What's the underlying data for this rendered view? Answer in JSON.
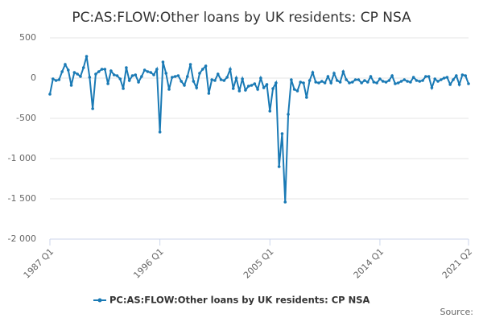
{
  "chart_data": {
    "type": "line",
    "title": "PC:AS:FLOW:Other loans by UK residents: CP NSA",
    "source": "Source:",
    "categories": [
      "1987 Q1",
      null,
      null,
      null,
      null,
      null,
      null,
      null,
      null,
      null,
      null,
      null,
      null,
      null,
      null,
      null,
      null,
      null,
      null,
      null,
      null,
      null,
      null,
      null,
      null,
      null,
      null,
      null,
      null,
      null,
      null,
      null,
      null,
      null,
      null,
      null,
      "1996 Q1",
      null,
      null,
      null,
      null,
      null,
      null,
      null,
      null,
      null,
      null,
      null,
      null,
      null,
      null,
      null,
      null,
      null,
      null,
      null,
      null,
      null,
      null,
      null,
      null,
      null,
      null,
      null,
      null,
      null,
      null,
      null,
      null,
      null,
      null,
      null,
      "2005 Q1",
      null,
      null,
      null,
      null,
      null,
      null,
      null,
      null,
      null,
      null,
      null,
      null,
      null,
      null,
      null,
      null,
      null,
      null,
      null,
      null,
      null,
      null,
      null,
      null,
      null,
      null,
      null,
      null,
      null,
      null,
      null,
      null,
      null,
      null,
      null,
      "2014 Q1",
      null,
      null,
      null,
      null,
      null,
      null,
      null,
      null,
      null,
      null,
      null,
      null,
      null,
      null,
      null,
      null,
      null,
      null,
      null,
      null,
      null,
      null,
      null,
      null,
      null,
      null,
      null,
      null,
      "2021 Q2"
    ],
    "series": [
      {
        "name": "PC:AS:FLOW:Other loans by UK residents: CP NSA",
        "color": "#1a7ab5",
        "values": [
          -200,
          -10,
          -30,
          -20,
          80,
          170,
          100,
          -90,
          70,
          50,
          20,
          130,
          270,
          10,
          -380,
          50,
          80,
          110,
          110,
          -70,
          90,
          40,
          30,
          -10,
          -130,
          130,
          -30,
          30,
          40,
          -50,
          20,
          100,
          80,
          70,
          40,
          110,
          -670,
          200,
          60,
          -140,
          10,
          20,
          30,
          -40,
          -90,
          20,
          170,
          -40,
          -120,
          60,
          110,
          150,
          -190,
          -20,
          -30,
          50,
          -20,
          -30,
          10,
          110,
          -130,
          0,
          -160,
          -10,
          -150,
          -100,
          -90,
          -70,
          -140,
          0,
          -120,
          -80,
          -410,
          -130,
          -60,
          -1100,
          -690,
          -1540,
          -450,
          -20,
          -140,
          -160,
          -50,
          -60,
          -240,
          -30,
          70,
          -50,
          -60,
          -40,
          -60,
          20,
          -60,
          60,
          -30,
          -50,
          80,
          -20,
          -60,
          -50,
          -20,
          -20,
          -60,
          -30,
          -50,
          20,
          -50,
          -60,
          -10,
          -40,
          -50,
          -30,
          30,
          -70,
          -60,
          -40,
          -20,
          -40,
          -50,
          10,
          -30,
          -40,
          -30,
          20,
          20,
          -120,
          -10,
          -40,
          -20,
          0,
          10,
          -80,
          -20,
          30,
          -80,
          40,
          30,
          -70
        ]
      }
    ],
    "ylim": [
      -2000,
      500
    ],
    "yticks": [
      500,
      0,
      -500,
      {
        "value": -1000,
        "label": "-1 000"
      },
      {
        "value": -1500,
        "label": "-1 500"
      },
      {
        "value": -2000,
        "label": "-2 000"
      }
    ],
    "grid": true
  }
}
